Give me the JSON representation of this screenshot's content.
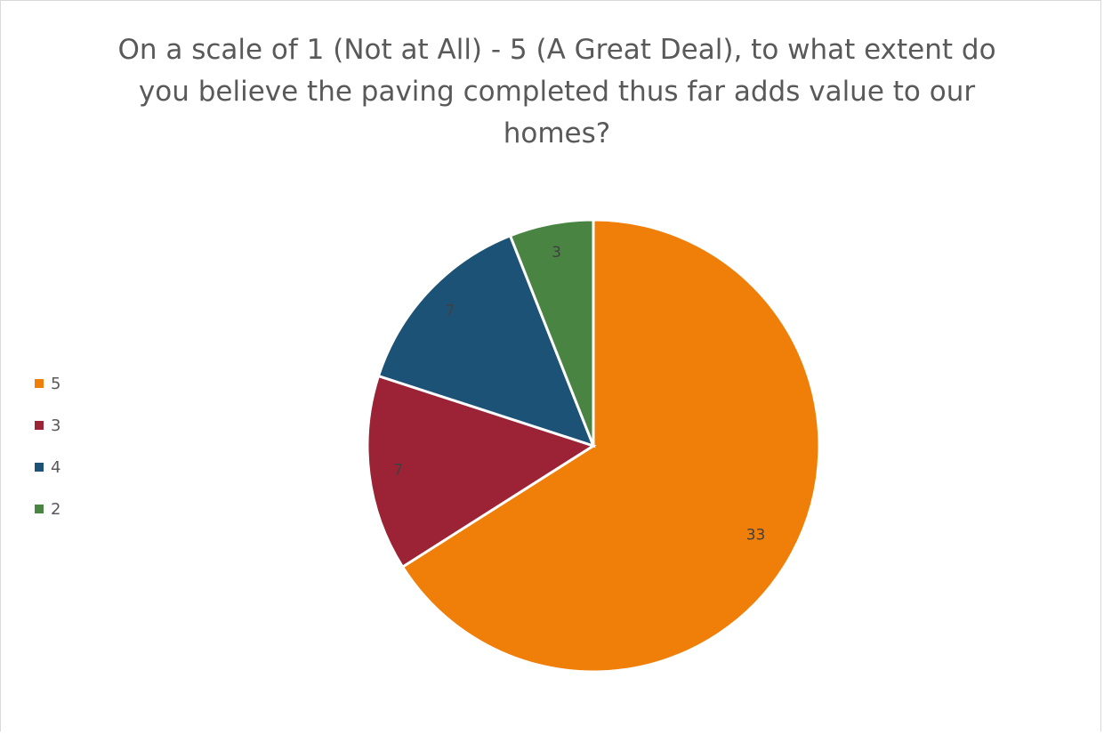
{
  "chart_data": {
    "type": "pie",
    "title": "On a scale of 1 (Not at All) - 5 (A Great Deal), to what extent do you believe the paving completed thus far adds value to our homes?",
    "categories": [
      "5",
      "3",
      "4",
      "2"
    ],
    "values": [
      33,
      7,
      7,
      3
    ],
    "colors": [
      "#F07F09",
      "#9B2335",
      "#1B5276",
      "#4A8442"
    ],
    "legend_position": "left",
    "data_labels": [
      "33",
      "7",
      "7",
      "3"
    ]
  }
}
